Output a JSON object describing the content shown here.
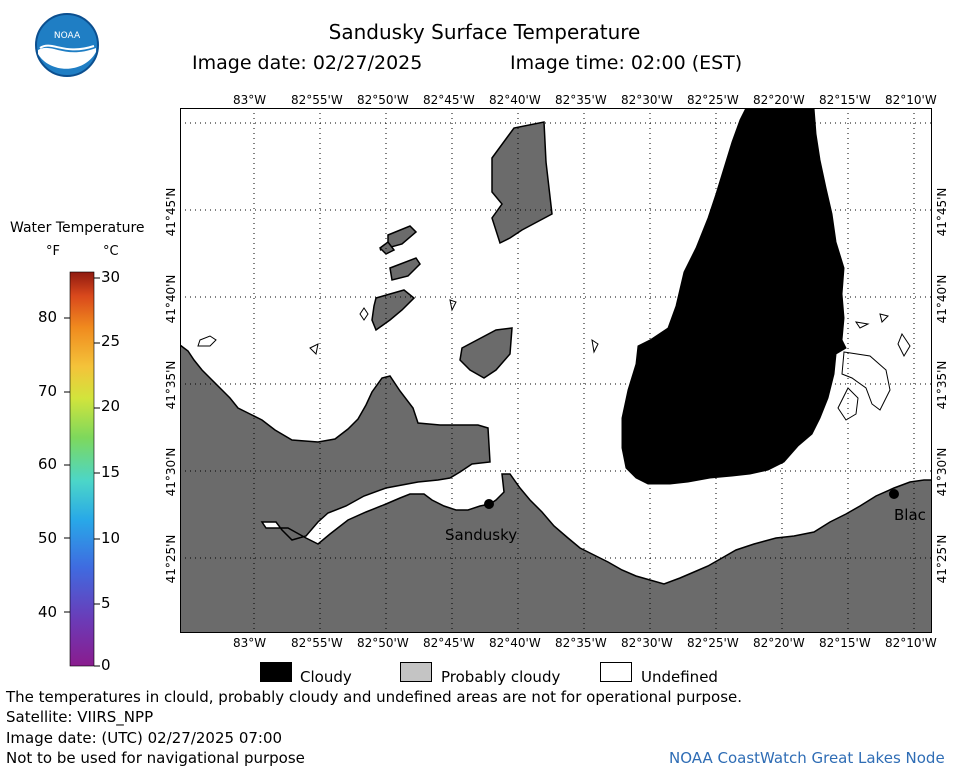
{
  "header": {
    "title": "Sandusky Surface Temperature",
    "image_date_label": "Image date: 02/27/2025",
    "image_time_label": "Image time: 02:00 (EST)"
  },
  "logo": {
    "text": "NOAA"
  },
  "colorbar": {
    "title": "Water Temperature",
    "unit_f": "°F",
    "unit_c": "°C",
    "f_ticks": [
      "80",
      "70",
      "60",
      "50",
      "40"
    ],
    "c_ticks": [
      "30",
      "25",
      "20",
      "15",
      "10",
      "5",
      "0"
    ]
  },
  "map": {
    "lon_labels": [
      "83°W",
      "82°55'W",
      "82°50'W",
      "82°45'W",
      "82°40'W",
      "82°35'W",
      "82°30'W",
      "82°25'W",
      "82°20'W",
      "82°15'W",
      "82°10'W"
    ],
    "lat_labels": [
      "41°45'N",
      "41°40'N",
      "41°35'N",
      "41°30'N",
      "41°25'N"
    ],
    "cities": {
      "sandusky": "Sandusky",
      "black_river": "Blac"
    },
    "colors": {
      "land": "#6b6b6b",
      "cloudy": "#000000",
      "probably_cloudy": "#6b6b6b",
      "water": "#ffffff"
    }
  },
  "legend": {
    "cloudy": "Cloudy",
    "probably_cloudy": "Probably cloudy",
    "undefined": "Undefined"
  },
  "footer": {
    "disclaimer": "The temperatures in clould, probably cloudy and undefined areas are not for operational purpose.",
    "satellite": "Satellite: VIIRS_NPP",
    "utc_date": "Image date: (UTC) 02/27/2025  07:00",
    "nav_warning": "Not to be used for navigational purpose",
    "credit": "NOAA CoastWatch Great Lakes Node"
  }
}
